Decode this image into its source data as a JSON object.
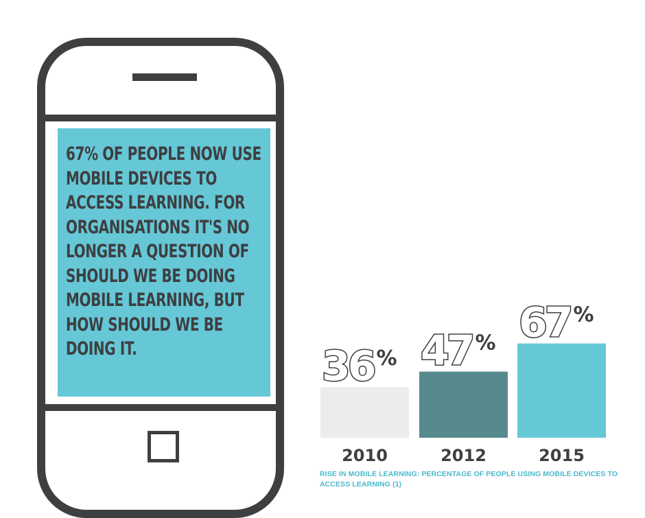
{
  "phone": {
    "screen_text": "67% OF PEOPLE NOW USE MOBILE DEVICES TO ACCESS LEARNING. FOR ORGANISATIONS IT'S NO LONGER A QUESTION OF SHOULD WE BE DOING MOBILE LEARNING, BUT HOW SHOULD WE BE DOING IT.",
    "screen_color": "#66c7d6",
    "frame_color": "#3d3f41"
  },
  "chart_data": {
    "type": "bar",
    "categories": [
      "2010",
      "2012",
      "2015"
    ],
    "values": [
      36,
      47,
      67
    ],
    "value_labels": [
      "36%",
      "47%",
      "67%"
    ],
    "colors": [
      "#ececee",
      "#578a8d",
      "#66c7d6"
    ],
    "ylim": [
      0,
      100
    ],
    "grid": false,
    "title": "",
    "xlabel": "",
    "ylabel": ""
  },
  "caption": "RISE IN MOBILE LEARNING: PERCENTAGE OF PEOPLE USING MOBILE DEVICES TO ACCESS LEARNING (1)"
}
